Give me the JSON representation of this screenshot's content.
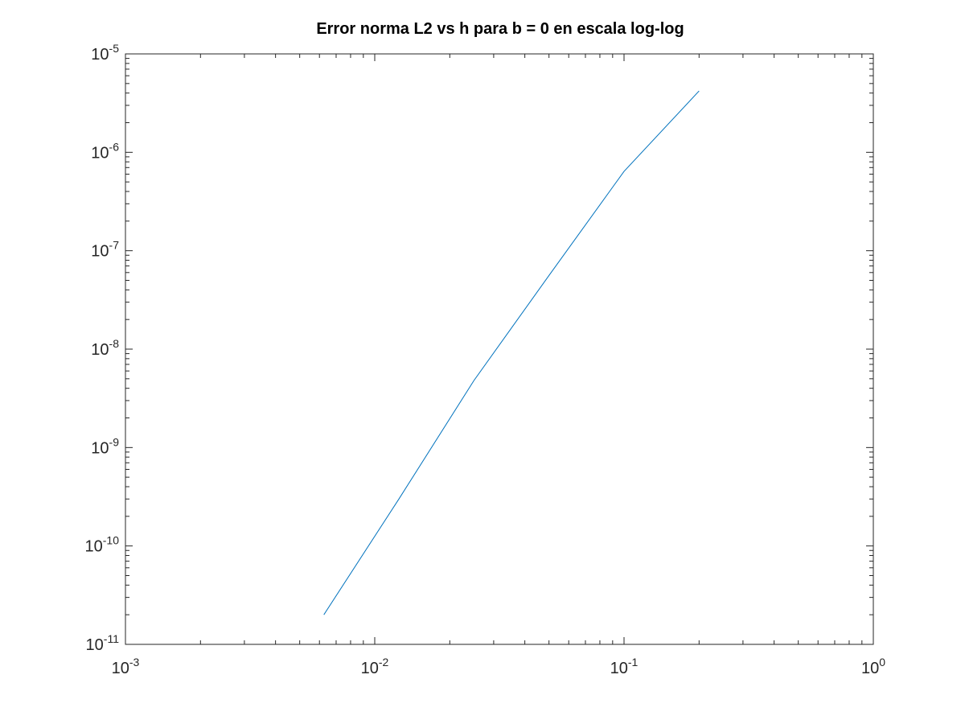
{
  "chart_data": {
    "type": "line",
    "title": "Error norma L2 vs h para b = 0 en escala log-log",
    "xlabel": "",
    "ylabel": "",
    "xscale": "log",
    "yscale": "log",
    "xlim": [
      0.001,
      1
    ],
    "ylim": [
      1e-11,
      1e-05
    ],
    "grid": false,
    "legend": "none",
    "x_ticks": [
      {
        "base": "10",
        "exp": "-3"
      },
      {
        "base": "10",
        "exp": "-2"
      },
      {
        "base": "10",
        "exp": "-1"
      },
      {
        "base": "10",
        "exp": "0"
      }
    ],
    "y_ticks": [
      {
        "base": "10",
        "exp": "-11"
      },
      {
        "base": "10",
        "exp": "-10"
      },
      {
        "base": "10",
        "exp": "-9"
      },
      {
        "base": "10",
        "exp": "-8"
      },
      {
        "base": "10",
        "exp": "-7"
      },
      {
        "base": "10",
        "exp": "-6"
      },
      {
        "base": "10",
        "exp": "-5"
      }
    ],
    "series": [
      {
        "color": "#0072bd",
        "x": [
          0.2,
          0.1,
          0.05,
          0.025,
          0.0125,
          0.00625
        ],
        "y": [
          4.2e-06,
          6.4e-07,
          5.6e-08,
          4.8e-09,
          3e-10,
          2e-11
        ]
      }
    ]
  }
}
